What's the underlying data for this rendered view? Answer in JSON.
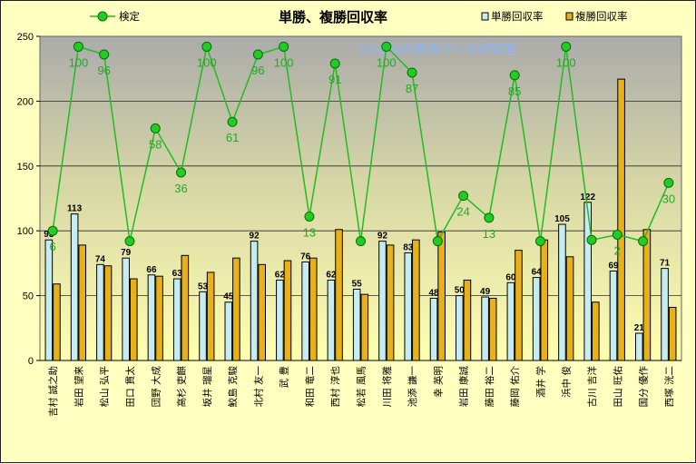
{
  "chart_data": {
    "type": "bar",
    "title": "単勝、複勝回収率",
    "watermark": "©Camiの競馬データ研究室",
    "ylim": [
      0,
      250
    ],
    "yticks": [
      0,
      50,
      100,
      150,
      200,
      250
    ],
    "grid": "horizontal",
    "categories": [
      "吉村 誠之助",
      "岩田 望来",
      "松山 弘平",
      "田口 貫太",
      "団野 大成",
      "高杉 吏麒",
      "坂井 瑠星",
      "鮫島 克駿",
      "北村 友一",
      "武 豊",
      "和田 竜二",
      "西村 淳也",
      "松若 風馬",
      "川田 将雅",
      "池添 謙一",
      "幸 英明",
      "岩田 康誠",
      "藤田 裕二",
      "藤岡 佑介",
      "酒井 学",
      "浜中 俊",
      "古川 吉洋",
      "田山 旺佑",
      "国分 優作",
      "西塚 洸二"
    ],
    "series": [
      {
        "name": "単勝回収率",
        "kind": "bar",
        "color": "#c6ecf2",
        "values": [
          93,
          113,
          74,
          79,
          66,
          63,
          53,
          45,
          92,
          62,
          76,
          62,
          55,
          92,
          83,
          48,
          50,
          49,
          60,
          64,
          105,
          122,
          69,
          21,
          71
        ],
        "labels": [
          "93",
          "113",
          "74",
          "79",
          "66",
          "63",
          "53",
          "45",
          "92",
          "62",
          "76",
          "62",
          "55",
          "92",
          "83",
          "48",
          "50",
          "49",
          "60",
          "64",
          "105",
          "122",
          "69",
          "21",
          "71"
        ]
      },
      {
        "name": "複勝回収率",
        "kind": "bar",
        "color": "#e8b019",
        "values": [
          59,
          89,
          73,
          63,
          65,
          81,
          68,
          79,
          74,
          77,
          79,
          101,
          51,
          89,
          93,
          99,
          62,
          48,
          85,
          93,
          80,
          45,
          217,
          101,
          41
        ]
      },
      {
        "name": "検定",
        "kind": "line",
        "color": "#22bb22",
        "values": [
          100,
          242,
          236,
          92,
          179,
          145,
          242,
          184,
          236,
          242,
          111,
          229,
          92,
          242,
          222,
          92,
          127,
          110,
          220,
          92,
          242,
          93,
          97,
          92,
          137
        ],
        "labels": [
          "6",
          "100",
          "96",
          "",
          "58",
          "36",
          "100",
          "61",
          "96",
          "100",
          "13",
          "91",
          "",
          "100",
          "87",
          "",
          "24",
          "13",
          "85",
          "",
          "100",
          "",
          "2",
          "",
          "30"
        ]
      }
    ],
    "legend": {
      "line": "検定",
      "bar1": "単勝回収率",
      "bar2": "複勝回収率"
    }
  }
}
